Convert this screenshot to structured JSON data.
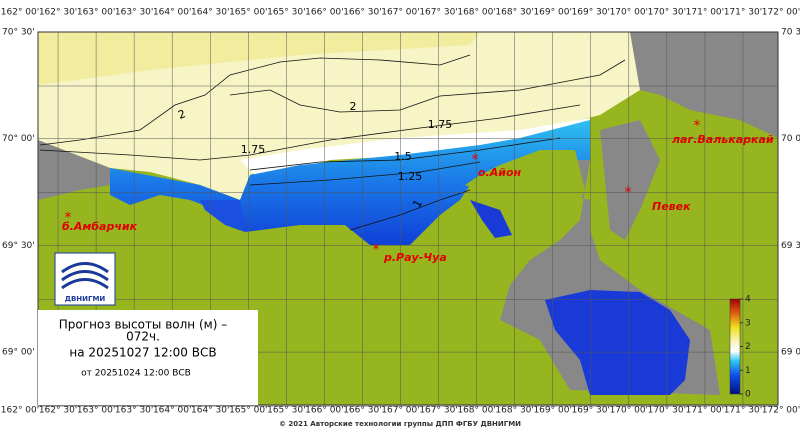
{
  "map": {
    "lon_labels": [
      "162° 00'",
      "162° 30'",
      "163° 00'",
      "163° 30'",
      "164° 00'",
      "164° 30'",
      "165° 00'",
      "165° 30'",
      "166° 00'",
      "166° 30'",
      "167° 00'",
      "167° 30'",
      "168° 00'",
      "168° 30'",
      "169° 00'",
      "169° 30'",
      "170° 00'",
      "170° 30'",
      "171° 00'",
      "171° 30'",
      "172° 00'"
    ],
    "lat_labels_left": [
      "70° 30'",
      "70° 00'",
      "69° 30'",
      "69° 00'"
    ],
    "lat_labels_right": [
      "70 3",
      "70 0",
      "69 3",
      "69 0"
    ],
    "contour_labels": [
      "2",
      "2",
      "1.75",
      "1.75",
      "1.5",
      "1.25",
      "1"
    ],
    "places": [
      "лаг.Валькаркай",
      "о.Айон",
      "Певек",
      "б.Амбарчик",
      "р.Рау-Чуа"
    ],
    "legend": {
      "title": "Прогноз высоты волн (м) –",
      "hours": "072ч.",
      "valid": "на 20251027 12:00 ВСВ",
      "issued": "от 20251024 12:00 ВСВ"
    },
    "colorbar": {
      "ticks": [
        0,
        1,
        2,
        3,
        4
      ]
    },
    "logo": "ДВНИГМИ",
    "footer": "© 2021 Авторские технологии группы ДПП ФГБУ ДВНИГМИ"
  }
}
